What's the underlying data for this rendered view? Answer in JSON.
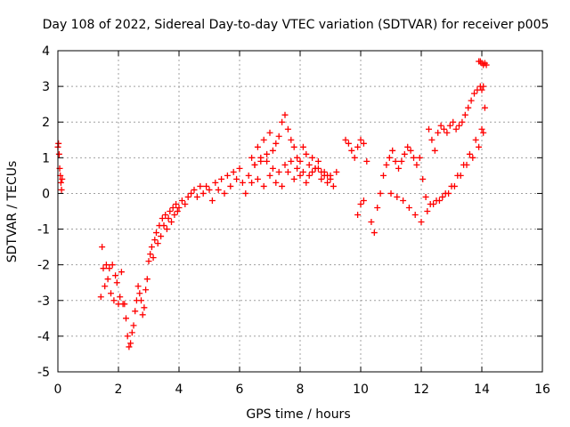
{
  "chart_data": {
    "type": "scatter",
    "title": "Day 108 of 2022, Sidereal Day-to-day VTEC variation (SDTVAR) for receiver p005",
    "xlabel": "GPS time / hours",
    "ylabel": "SDTVAR / TECUs",
    "xlim": [
      0,
      16
    ],
    "ylim": [
      -5,
      4
    ],
    "xticks": [
      0,
      2,
      4,
      6,
      8,
      10,
      12,
      14,
      16
    ],
    "yticks": [
      -5,
      -4,
      -3,
      -2,
      -1,
      0,
      1,
      2,
      3,
      4
    ],
    "grid": true,
    "legend": "none",
    "marker": "plus",
    "color": "#ff0000",
    "series": [
      {
        "x": [
          0.0,
          0.02,
          0.04,
          0.06,
          0.08,
          0.1,
          0.12,
          0.14,
          1.42,
          1.46,
          1.5,
          1.55,
          1.6,
          1.65,
          1.7,
          1.75,
          1.8,
          1.85,
          1.9,
          1.95,
          2.0,
          2.05,
          2.1,
          2.15,
          2.2,
          2.25,
          2.3,
          2.35,
          2.4,
          2.45,
          2.5,
          2.55,
          2.6,
          2.65,
          2.7,
          2.75,
          2.8,
          2.85,
          2.9,
          2.95,
          3.0,
          3.05,
          3.1,
          3.15,
          3.2,
          3.25,
          3.3,
          3.35,
          3.4,
          3.45,
          3.5,
          3.55,
          3.6,
          3.65,
          3.7,
          3.75,
          3.8,
          3.85,
          3.9,
          3.95,
          4.0,
          4.1,
          4.2,
          4.3,
          4.4,
          4.5,
          4.6,
          4.7,
          4.8,
          4.9,
          5.0,
          5.1,
          5.2,
          5.3,
          5.4,
          5.5,
          5.6,
          5.7,
          5.8,
          5.9,
          6.0,
          6.1,
          6.2,
          6.3,
          6.4,
          6.5,
          6.6,
          6.7,
          6.8,
          6.9,
          7.0,
          7.1,
          7.2,
          7.3,
          7.4,
          7.5,
          7.6,
          7.7,
          7.8,
          7.9,
          8.0,
          8.1,
          8.2,
          8.3,
          8.4,
          8.5,
          8.6,
          8.7,
          8.8,
          8.9,
          9.0,
          9.1,
          9.2,
          9.5,
          9.6,
          9.7,
          9.8,
          9.9,
          10.0,
          10.1,
          10.2,
          9.9,
          10.0,
          10.1,
          10.35,
          10.45,
          10.55,
          10.65,
          10.75,
          10.85,
          10.95,
          11.05,
          11.15,
          11.25,
          11.35,
          11.45,
          11.55,
          11.65,
          11.75,
          11.85,
          11.95,
          12.05,
          12.15,
          12.25,
          12.35,
          12.45,
          12.55,
          12.65,
          12.75,
          12.85,
          12.95,
          13.05,
          13.15,
          13.25,
          13.35,
          13.45,
          13.55,
          13.65,
          13.75,
          13.85,
          13.95,
          14.0,
          14.05,
          14.1,
          13.9,
          13.95,
          14.0,
          14.05,
          14.1,
          14.15,
          6.4,
          6.6,
          6.8,
          7.0,
          7.2,
          7.4,
          7.6,
          7.8,
          8.0,
          8.2,
          8.4,
          8.6,
          8.8,
          9.0,
          6.5,
          6.7,
          6.9,
          7.1,
          7.3,
          7.5,
          7.7,
          7.9,
          8.1,
          8.3,
          8.5,
          8.7,
          8.9,
          11.0,
          11.2,
          11.4,
          11.6,
          11.8,
          12.0,
          12.2,
          12.4,
          12.6,
          12.8,
          13.0,
          13.2,
          13.4,
          13.6,
          13.8,
          14.0,
          12.3,
          12.5,
          12.7,
          12.9,
          13.1,
          13.3,
          13.5,
          13.7,
          13.9,
          14.05
        ],
        "y": [
          1.3,
          1.4,
          1.1,
          0.7,
          0.5,
          0.3,
          0.1,
          0.4,
          -2.9,
          -1.5,
          -2.1,
          -2.6,
          -2.0,
          -2.4,
          -2.1,
          -2.8,
          -2.0,
          -3.0,
          -2.3,
          -2.5,
          -3.1,
          -2.9,
          -2.2,
          -3.1,
          -3.1,
          -3.5,
          -4.0,
          -4.3,
          -4.2,
          -3.9,
          -3.7,
          -3.3,
          -3.0,
          -2.6,
          -2.8,
          -3.0,
          -3.4,
          -3.2,
          -2.7,
          -2.4,
          -1.9,
          -1.7,
          -1.5,
          -1.8,
          -1.3,
          -1.1,
          -1.4,
          -0.9,
          -1.2,
          -0.7,
          -0.9,
          -0.6,
          -1.0,
          -0.7,
          -0.5,
          -0.8,
          -0.4,
          -0.6,
          -0.3,
          -0.5,
          -0.4,
          -0.2,
          -0.3,
          -0.1,
          0.0,
          0.1,
          -0.1,
          0.2,
          0.0,
          0.2,
          0.1,
          -0.2,
          0.3,
          0.1,
          0.4,
          0.0,
          0.5,
          0.2,
          0.6,
          0.4,
          0.7,
          0.3,
          0.0,
          0.5,
          1.0,
          0.8,
          1.3,
          0.9,
          1.5,
          1.1,
          1.7,
          1.2,
          1.4,
          1.6,
          2.0,
          2.2,
          1.8,
          1.5,
          1.3,
          1.0,
          0.9,
          1.3,
          1.1,
          0.8,
          1.0,
          0.7,
          0.9,
          0.4,
          0.6,
          0.3,
          0.5,
          0.2,
          0.6,
          1.5,
          1.4,
          1.2,
          1.0,
          1.3,
          1.5,
          1.4,
          0.9,
          -0.6,
          -0.3,
          -0.2,
          -0.8,
          -1.1,
          -0.4,
          0.0,
          0.5,
          0.8,
          1.0,
          1.2,
          0.9,
          0.7,
          0.9,
          1.1,
          1.3,
          1.2,
          1.0,
          0.8,
          1.0,
          0.4,
          -0.1,
          1.8,
          1.5,
          1.2,
          1.7,
          1.9,
          1.8,
          1.7,
          1.9,
          2.0,
          1.8,
          1.9,
          2.0,
          2.2,
          2.4,
          2.6,
          2.8,
          2.9,
          3.0,
          2.9,
          3.0,
          2.4,
          3.7,
          3.7,
          3.65,
          3.6,
          3.65,
          3.6,
          0.3,
          0.4,
          0.2,
          0.5,
          0.3,
          0.2,
          0.6,
          0.4,
          0.5,
          0.3,
          0.6,
          0.7,
          0.5,
          0.4,
          0.8,
          1.0,
          0.9,
          0.7,
          0.6,
          0.8,
          0.9,
          0.7,
          0.6,
          0.5,
          0.7,
          0.6,
          0.5,
          0.0,
          -0.1,
          -0.2,
          -0.4,
          -0.6,
          -0.8,
          -0.5,
          -0.3,
          -0.2,
          0.0,
          0.2,
          0.5,
          0.8,
          1.1,
          1.5,
          1.8,
          -0.3,
          -0.2,
          -0.1,
          0.0,
          0.2,
          0.5,
          0.8,
          1.0,
          1.3,
          1.7
        ]
      }
    ]
  }
}
